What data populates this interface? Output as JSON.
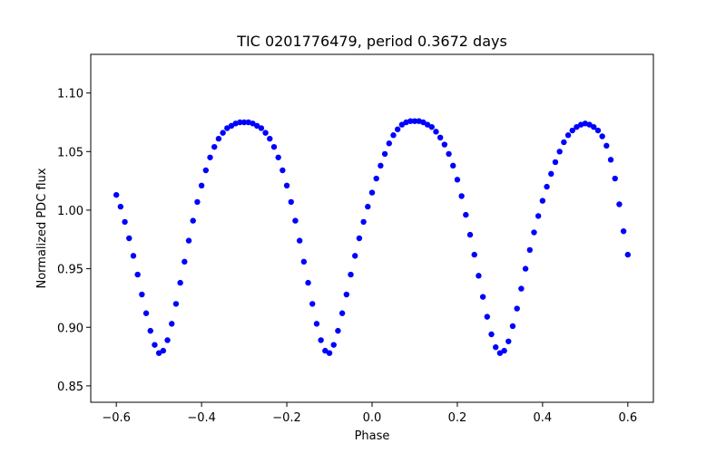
{
  "chart_data": {
    "type": "scatter",
    "title": "TIC 0201776479, period 0.3672 days",
    "xlabel": "Phase",
    "ylabel": "Normalized PDC flux",
    "xlim": [
      -0.66,
      0.66
    ],
    "ylim": [
      0.836,
      1.133
    ],
    "xticks": [
      -0.6,
      -0.4,
      -0.2,
      0.0,
      0.2,
      0.4,
      0.6
    ],
    "xtick_labels": [
      "−0.6",
      "−0.4",
      "−0.2",
      "0.0",
      "0.2",
      "0.4",
      "0.6"
    ],
    "yticks": [
      0.85,
      0.9,
      0.95,
      1.0,
      1.05,
      1.1
    ],
    "ytick_labels": [
      "0.85",
      "0.90",
      "0.95",
      "1.00",
      "1.05",
      "1.10"
    ],
    "grid": false,
    "marker_color": "#0000ff",
    "series": [
      {
        "x": [
          -0.6,
          -0.59,
          -0.58,
          -0.57,
          -0.56,
          -0.55,
          -0.54,
          -0.53,
          -0.52,
          -0.51,
          -0.5,
          -0.49,
          -0.48,
          -0.47,
          -0.46,
          -0.45,
          -0.44,
          -0.43,
          -0.42,
          -0.41,
          -0.4,
          -0.39,
          -0.38,
          -0.37,
          -0.36,
          -0.35,
          -0.34,
          -0.33,
          -0.32,
          -0.31,
          -0.3,
          -0.29,
          -0.28,
          -0.27,
          -0.26,
          -0.25,
          -0.24,
          -0.23,
          -0.22,
          -0.21,
          -0.2,
          -0.19,
          -0.18,
          -0.17,
          -0.16,
          -0.15,
          -0.14,
          -0.13,
          -0.12,
          -0.11,
          -0.1,
          -0.09,
          -0.08,
          -0.07,
          -0.06,
          -0.05,
          -0.04,
          -0.03,
          -0.02,
          -0.01,
          0.0,
          0.01,
          0.02,
          0.03,
          0.04,
          0.05,
          0.06,
          0.07,
          0.08,
          0.09,
          0.1,
          0.11,
          0.12,
          0.13,
          0.14,
          0.15,
          0.16,
          0.17,
          0.18,
          0.19,
          0.2,
          0.21,
          0.22,
          0.23,
          0.24,
          0.25,
          0.26,
          0.27,
          0.28,
          0.29,
          0.3,
          0.31,
          0.32,
          0.33,
          0.34,
          0.35,
          0.36,
          0.37,
          0.38,
          0.39,
          0.4,
          0.41,
          0.42,
          0.43,
          0.44,
          0.45,
          0.46,
          0.47,
          0.48,
          0.49,
          0.5,
          0.51,
          0.52,
          0.53,
          0.54,
          0.55,
          0.56,
          0.57,
          0.58,
          0.59,
          0.6
        ],
        "y": [
          1.013,
          1.003,
          0.99,
          0.976,
          0.961,
          0.945,
          0.928,
          0.912,
          0.897,
          0.885,
          0.878,
          0.88,
          0.889,
          0.903,
          0.92,
          0.938,
          0.956,
          0.974,
          0.991,
          1.007,
          1.021,
          1.034,
          1.045,
          1.054,
          1.061,
          1.066,
          1.07,
          1.072,
          1.074,
          1.075,
          1.075,
          1.075,
          1.074,
          1.072,
          1.07,
          1.066,
          1.061,
          1.054,
          1.045,
          1.034,
          1.021,
          1.007,
          0.991,
          0.974,
          0.956,
          0.938,
          0.92,
          0.903,
          0.889,
          0.88,
          0.878,
          0.885,
          0.897,
          0.912,
          0.928,
          0.945,
          0.961,
          0.976,
          0.99,
          1.003,
          1.015,
          1.027,
          1.038,
          1.048,
          1.057,
          1.064,
          1.069,
          1.073,
          1.075,
          1.076,
          1.076,
          1.076,
          1.075,
          1.073,
          1.071,
          1.067,
          1.062,
          1.056,
          1.048,
          1.038,
          1.026,
          1.012,
          0.996,
          0.979,
          0.962,
          0.944,
          0.926,
          0.909,
          0.894,
          0.883,
          0.878,
          0.88,
          0.888,
          0.901,
          0.916,
          0.933,
          0.95,
          0.966,
          0.981,
          0.995,
          1.008,
          1.02,
          1.031,
          1.041,
          1.05,
          1.058,
          1.064,
          1.068,
          1.071,
          1.073,
          1.074,
          1.073,
          1.071,
          1.068,
          1.063,
          1.055,
          1.043,
          1.027,
          1.005,
          0.982,
          0.962
        ]
      }
    ]
  }
}
